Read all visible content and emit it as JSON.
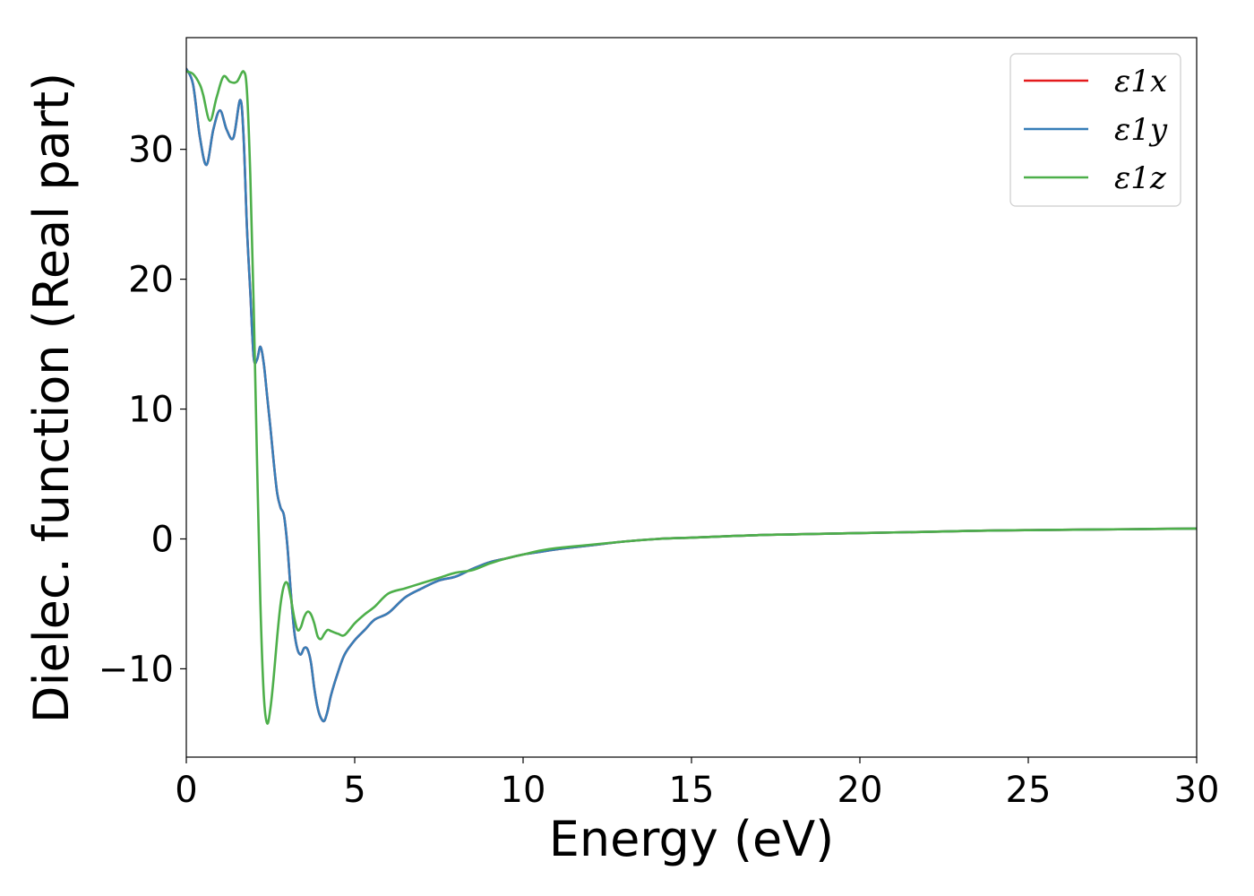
{
  "chart_data": {
    "type": "line",
    "title": "",
    "xlabel": "Energy (eV)",
    "ylabel": "Dielec. function (Real part)",
    "xlim": [
      0,
      30
    ],
    "ylim": [
      -16.8,
      38.6
    ],
    "x_ticks": [
      0,
      5,
      10,
      15,
      20,
      25,
      30
    ],
    "x_tick_labels": [
      "0",
      "5",
      "10",
      "15",
      "20",
      "25",
      "30"
    ],
    "y_ticks": [
      -10,
      0,
      10,
      20,
      30
    ],
    "y_tick_labels": [
      "−10",
      "0",
      "10",
      "20",
      "30"
    ],
    "grid": false,
    "legend_position": "top-right",
    "series": [
      {
        "name": "ε1x",
        "color": "#e41a1c",
        "x": [
          0,
          0.2,
          0.4,
          0.6,
          0.8,
          1.0,
          1.2,
          1.4,
          1.6,
          1.7,
          1.8,
          1.9,
          2.0,
          2.1,
          2.2,
          2.3,
          2.4,
          2.5,
          2.6,
          2.7,
          2.8,
          2.9,
          3.0,
          3.1,
          3.2,
          3.3,
          3.4,
          3.5,
          3.6,
          3.7,
          3.8,
          3.9,
          4.0,
          4.1,
          4.2,
          4.3,
          4.5,
          4.7,
          5.0,
          5.3,
          5.6,
          6.0,
          6.5,
          7.0,
          7.5,
          8.0,
          8.5,
          9.0,
          9.5,
          10.0,
          10.5,
          11.0,
          12.0,
          13.0,
          14.0,
          15.0,
          16.0,
          17.0,
          18.0,
          20.0,
          22.0,
          24.0,
          26.0,
          28.0,
          30.0
        ],
        "y": [
          36.2,
          35.0,
          31.0,
          28.8,
          31.5,
          33.0,
          31.5,
          30.9,
          33.8,
          31.0,
          24.0,
          19.0,
          14.0,
          13.8,
          14.8,
          13.5,
          11.0,
          8.5,
          5.8,
          3.5,
          2.4,
          1.8,
          -0.5,
          -4.0,
          -7.0,
          -8.5,
          -8.9,
          -8.4,
          -8.5,
          -9.5,
          -11.5,
          -13.0,
          -13.8,
          -14.0,
          -13.2,
          -12.0,
          -10.3,
          -8.9,
          -7.8,
          -7.0,
          -6.2,
          -5.7,
          -4.5,
          -3.8,
          -3.2,
          -2.9,
          -2.3,
          -1.8,
          -1.5,
          -1.2,
          -1.0,
          -0.8,
          -0.5,
          -0.2,
          0.0,
          0.1,
          0.2,
          0.3,
          0.35,
          0.45,
          0.55,
          0.65,
          0.7,
          0.75,
          0.8
        ]
      },
      {
        "name": "ε1y",
        "color": "#377eb8",
        "x": [
          0,
          0.2,
          0.4,
          0.6,
          0.8,
          1.0,
          1.2,
          1.4,
          1.6,
          1.7,
          1.8,
          1.9,
          2.0,
          2.1,
          2.2,
          2.3,
          2.4,
          2.5,
          2.6,
          2.7,
          2.8,
          2.9,
          3.0,
          3.1,
          3.2,
          3.3,
          3.4,
          3.5,
          3.6,
          3.7,
          3.8,
          3.9,
          4.0,
          4.1,
          4.2,
          4.3,
          4.5,
          4.7,
          5.0,
          5.3,
          5.6,
          6.0,
          6.5,
          7.0,
          7.5,
          8.0,
          8.5,
          9.0,
          9.5,
          10.0,
          10.5,
          11.0,
          12.0,
          13.0,
          14.0,
          15.0,
          16.0,
          17.0,
          18.0,
          20.0,
          22.0,
          24.0,
          26.0,
          28.0,
          30.0
        ],
        "y": [
          36.2,
          35.0,
          31.0,
          28.8,
          31.5,
          33.0,
          31.5,
          30.9,
          33.8,
          31.0,
          24.0,
          19.0,
          14.0,
          13.8,
          14.8,
          13.5,
          11.0,
          8.5,
          5.8,
          3.5,
          2.4,
          1.8,
          -0.5,
          -4.0,
          -7.0,
          -8.5,
          -8.9,
          -8.4,
          -8.5,
          -9.5,
          -11.5,
          -13.0,
          -13.8,
          -14.0,
          -13.2,
          -12.0,
          -10.3,
          -8.9,
          -7.8,
          -7.0,
          -6.2,
          -5.7,
          -4.5,
          -3.8,
          -3.2,
          -2.9,
          -2.3,
          -1.8,
          -1.5,
          -1.2,
          -1.0,
          -0.8,
          -0.5,
          -0.2,
          0.0,
          0.1,
          0.2,
          0.3,
          0.35,
          0.45,
          0.55,
          0.65,
          0.7,
          0.75,
          0.8
        ]
      },
      {
        "name": "ε1z",
        "color": "#4daf4a",
        "x": [
          0,
          0.2,
          0.4,
          0.5,
          0.7,
          0.9,
          1.1,
          1.3,
          1.5,
          1.7,
          1.8,
          1.9,
          2.0,
          2.1,
          2.2,
          2.3,
          2.4,
          2.5,
          2.6,
          2.7,
          2.8,
          2.9,
          3.0,
          3.1,
          3.2,
          3.3,
          3.4,
          3.5,
          3.6,
          3.7,
          3.8,
          3.9,
          4.0,
          4.1,
          4.2,
          4.3,
          4.5,
          4.7,
          5.0,
          5.3,
          5.6,
          6.0,
          6.5,
          7.0,
          7.5,
          8.0,
          8.5,
          9.0,
          9.5,
          10.0,
          10.5,
          11.0,
          12.0,
          13.0,
          14.0,
          15.0,
          16.0,
          17.0,
          18.0,
          20.0,
          22.0,
          24.0,
          26.0,
          28.0,
          30.0
        ],
        "y": [
          36.0,
          35.8,
          35.0,
          34.2,
          32.2,
          34.0,
          35.6,
          35.2,
          35.2,
          36.0,
          34.5,
          28.0,
          18.0,
          6.0,
          -5.0,
          -12.0,
          -14.2,
          -13.0,
          -10.5,
          -7.5,
          -5.0,
          -3.6,
          -3.4,
          -4.5,
          -6.0,
          -7.0,
          -6.8,
          -6.0,
          -5.6,
          -5.8,
          -6.5,
          -7.5,
          -7.7,
          -7.3,
          -7.0,
          -7.1,
          -7.3,
          -7.4,
          -6.5,
          -5.8,
          -5.2,
          -4.2,
          -3.8,
          -3.4,
          -3.0,
          -2.6,
          -2.4,
          -1.9,
          -1.5,
          -1.2,
          -0.9,
          -0.7,
          -0.45,
          -0.2,
          0.0,
          0.1,
          0.2,
          0.3,
          0.35,
          0.45,
          0.55,
          0.65,
          0.7,
          0.75,
          0.8
        ]
      }
    ]
  }
}
